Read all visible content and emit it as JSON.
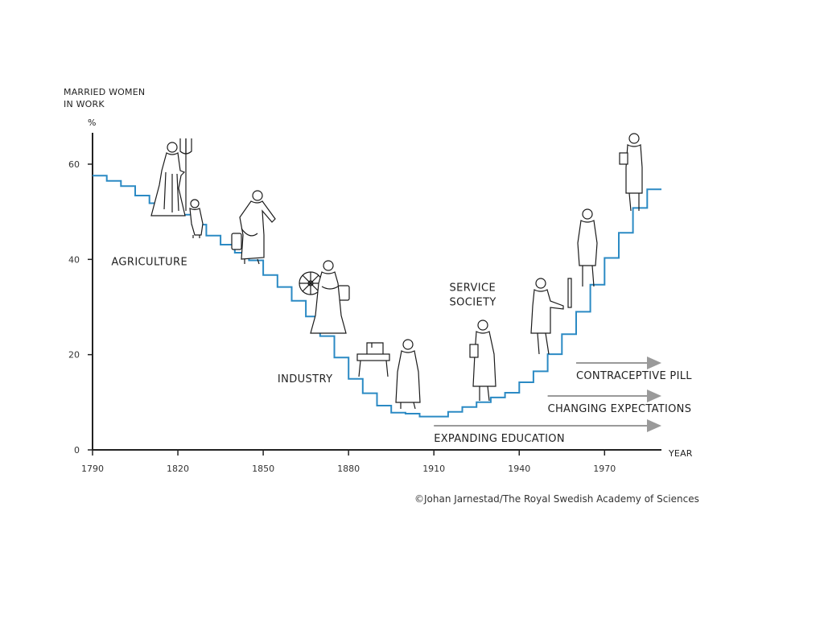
{
  "chart_data": {
    "type": "line",
    "step": true,
    "ylabel": [
      "MARRIED WOMEN",
      "IN WORK"
    ],
    "yunit": "%",
    "xlabel": "YEAR",
    "xlim": [
      1790,
      1990
    ],
    "ylim": [
      0,
      70
    ],
    "xticks": [
      1790,
      1820,
      1850,
      1880,
      1910,
      1940,
      1970
    ],
    "yticks": [
      0,
      20,
      40,
      60
    ],
    "line_color": "#2b8ac4",
    "series": [
      {
        "x": [
          1790,
          1795,
          1800,
          1805,
          1810,
          1815,
          1820,
          1825,
          1830,
          1835,
          1840,
          1845,
          1850,
          1855,
          1860,
          1865,
          1870,
          1875,
          1880,
          1885,
          1890,
          1895,
          1900,
          1905,
          1910,
          1915,
          1920,
          1925,
          1930,
          1935,
          1940,
          1945,
          1950,
          1955,
          1960,
          1965,
          1970,
          1975,
          1980,
          1985
        ],
        "y": [
          57.6,
          56.5,
          55.4,
          53.4,
          51.8,
          50.5,
          49.4,
          47.3,
          45.0,
          43.1,
          41.4,
          39.8,
          36.7,
          34.2,
          31.3,
          28.0,
          23.9,
          19.4,
          14.9,
          11.9,
          9.3,
          7.8,
          7.6,
          7.0,
          7.0,
          8.0,
          9.0,
          10.0,
          11.0,
          12.0,
          14.2,
          16.5,
          20.1,
          24.3,
          29.0,
          34.7,
          40.3,
          45.6,
          50.8,
          54.7
        ]
      }
    ],
    "annotations": [
      {
        "label": "AGRICULTURE",
        "x": 1800,
        "y": 45
      },
      {
        "label": "INDUSTRY",
        "x": 1857,
        "y": 15
      },
      {
        "label": [
          "SERVICE",
          "SOCIETY"
        ],
        "x": 1918,
        "y": 33
      }
    ],
    "trends": [
      {
        "label": "CONTRACEPTIVE PILL",
        "from": 1960,
        "to": 1990
      },
      {
        "label": "CHANGING EXPECTATIONS",
        "from": 1950,
        "to": 1990
      },
      {
        "label": "EXPANDING EDUCATION",
        "from": 1910,
        "to": 1990
      }
    ],
    "trend_color": "#9a9a9a"
  },
  "credit": "©Johan Jarnestad/The Royal Swedish Academy of Sciences"
}
